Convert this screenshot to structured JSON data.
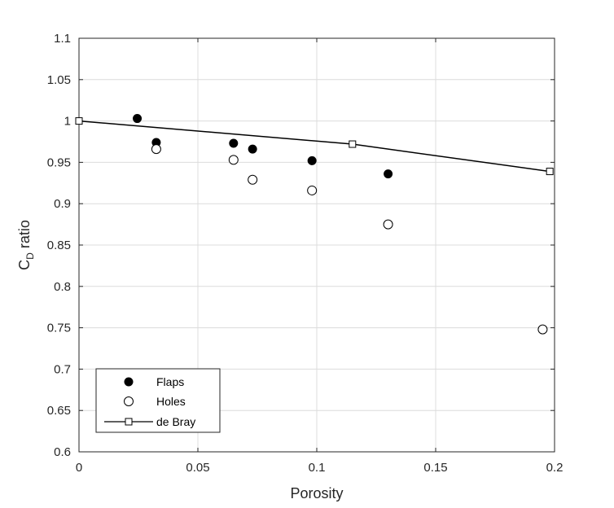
{
  "chart_data": {
    "type": "scatter",
    "xlabel": "Porosity",
    "ylabel_main": "C",
    "ylabel_sub": "D",
    "ylabel_rest": " ratio",
    "xlim": [
      0,
      0.2
    ],
    "ylim": [
      0.6,
      1.1
    ],
    "xticks": [
      "0",
      "0.05",
      "0.1",
      "0.15",
      "0.2"
    ],
    "yticks": [
      "0.6",
      "0.65",
      "0.7",
      "0.75",
      "0.8",
      "0.85",
      "0.9",
      "0.95",
      "1",
      "1.05",
      "1.1"
    ],
    "grid": true,
    "legend_position": "bottom-left",
    "series": [
      {
        "name": "Flaps",
        "marker": "filled-circle",
        "color": "#000000",
        "x": [
          0.0245,
          0.0325,
          0.065,
          0.073,
          0.098,
          0.13
        ],
        "y": [
          1.003,
          0.974,
          0.973,
          0.966,
          0.952,
          0.936
        ]
      },
      {
        "name": "Holes",
        "marker": "open-circle",
        "color": "#000000",
        "x": [
          0.0325,
          0.065,
          0.073,
          0.098,
          0.13,
          0.195
        ],
        "y": [
          0.966,
          0.953,
          0.929,
          0.916,
          0.875,
          0.748
        ]
      },
      {
        "name": "de Bray",
        "marker": "open-square",
        "line": true,
        "color": "#000000",
        "x": [
          0,
          0.115,
          0.198
        ],
        "y": [
          1.0,
          0.972,
          0.939
        ]
      }
    ]
  }
}
